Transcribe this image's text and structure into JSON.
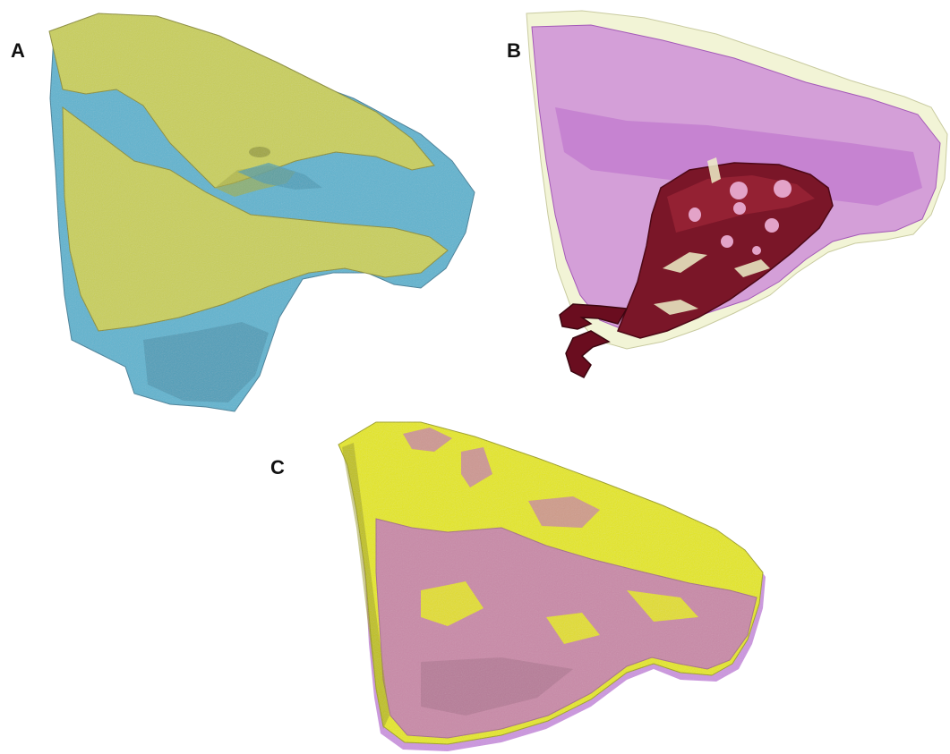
{
  "figure": {
    "panels": [
      {
        "label": "A",
        "description_colors": {
          "mesh_primary": "#c9cf5a",
          "mesh_secondary": "#5fb6d0"
        }
      },
      {
        "label": "B",
        "description_colors": {
          "mesh_primary": "#c87ad8",
          "mesh_secondary": "#eef0c8",
          "guide": "#7a1020"
        }
      },
      {
        "label": "C",
        "description_colors": {
          "mesh_primary": "#e4e61c",
          "mesh_secondary": "#c98aa8",
          "edge": "#b56ad0"
        }
      }
    ]
  }
}
